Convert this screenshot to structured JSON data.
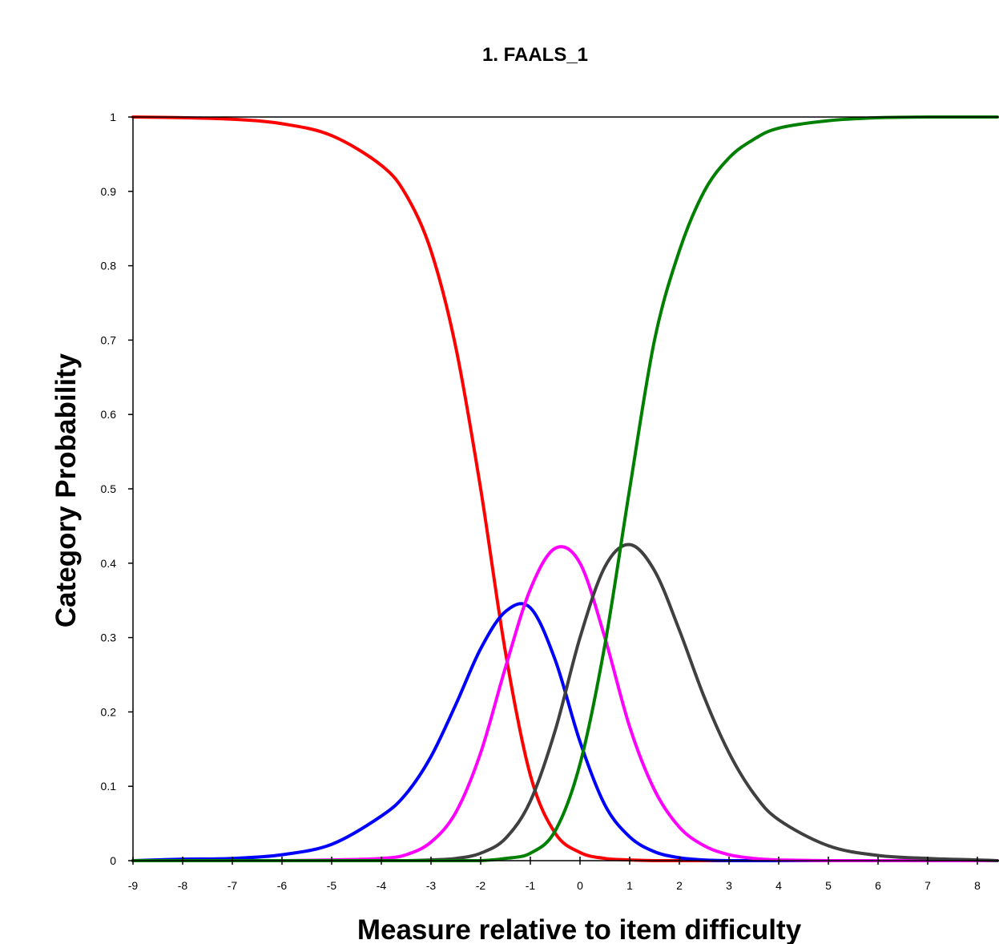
{
  "chart_data": {
    "type": "line",
    "title": "1. FAALS_1",
    "xlabel": "Measure relative to item difficulty",
    "ylabel": "Category Probability",
    "xlim": [
      -9,
      8.4
    ],
    "ylim": [
      0,
      1
    ],
    "x_ticks": [
      -9,
      -8,
      -7,
      -6,
      -5,
      -4,
      -3,
      -2,
      -1,
      0,
      1,
      2,
      3,
      4,
      5,
      6,
      7,
      8
    ],
    "x_tick_labels": [
      "-9",
      "-8",
      "-7",
      "-6",
      "-5",
      "-4",
      "-3",
      "-2",
      "-1",
      "0",
      "1",
      "2",
      "3",
      "4",
      "5",
      "6",
      "7",
      "8"
    ],
    "y_ticks": [
      0,
      0.1,
      0.2,
      0.3,
      0.4,
      0.5,
      0.6,
      0.7,
      0.8,
      0.9,
      1
    ],
    "y_tick_labels": [
      "0",
      "0.1",
      "0.2",
      "0.3",
      "0.4",
      "0.5",
      "0.6",
      "0.7",
      "0.8",
      "0.9",
      "1"
    ],
    "grid": false,
    "legend": "none",
    "x": [
      -9,
      -8,
      -7,
      -6,
      -5,
      -4,
      -3.5,
      -3,
      -2.5,
      -2,
      -1.5,
      -1,
      -0.5,
      0,
      0.5,
      1,
      1.5,
      2,
      2.5,
      3,
      3.5,
      4,
      5,
      6,
      7,
      8,
      8.4
    ],
    "series": [
      {
        "color": "#ff0000",
        "values": [
          1.0,
          0.999,
          0.997,
          0.991,
          0.975,
          0.935,
          0.895,
          0.82,
          0.69,
          0.5,
          0.28,
          0.115,
          0.037,
          0.011,
          0.003,
          0.001,
          0,
          0,
          0,
          0,
          0,
          0,
          0,
          0,
          0,
          0,
          0
        ]
      },
      {
        "color": "#0000ff",
        "values": [
          0.0,
          0.002,
          0.003,
          0.008,
          0.022,
          0.06,
          0.09,
          0.14,
          0.21,
          0.285,
          0.335,
          0.34,
          0.27,
          0.16,
          0.075,
          0.032,
          0.012,
          0.004,
          0.001,
          0,
          0,
          0,
          0,
          0,
          0,
          0,
          0
        ]
      },
      {
        "color": "#ff00ff",
        "values": [
          0,
          0,
          0,
          0,
          0.001,
          0.003,
          0.008,
          0.025,
          0.065,
          0.145,
          0.26,
          0.365,
          0.42,
          0.4,
          0.3,
          0.18,
          0.095,
          0.045,
          0.02,
          0.008,
          0.003,
          0.001,
          0,
          0,
          0,
          0,
          0
        ]
      },
      {
        "color": "#404040",
        "values": [
          0,
          0,
          0,
          0,
          0,
          0,
          0,
          0.001,
          0.003,
          0.01,
          0.03,
          0.08,
          0.175,
          0.3,
          0.395,
          0.425,
          0.39,
          0.31,
          0.22,
          0.145,
          0.09,
          0.055,
          0.02,
          0.007,
          0.003,
          0.001,
          0
        ]
      },
      {
        "color": "#008000",
        "values": [
          0,
          0,
          0,
          0,
          0,
          0,
          0,
          0,
          0,
          0,
          0.003,
          0.01,
          0.04,
          0.13,
          0.29,
          0.5,
          0.7,
          0.82,
          0.9,
          0.945,
          0.97,
          0.985,
          0.995,
          0.999,
          1.0,
          1.0,
          1.0
        ]
      }
    ]
  }
}
